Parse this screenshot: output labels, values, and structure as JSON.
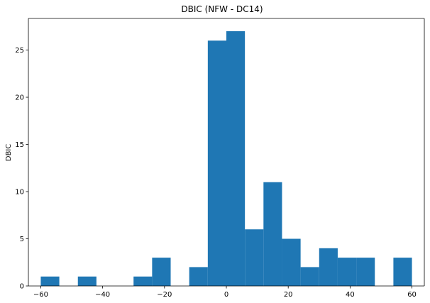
{
  "chart_data": {
    "type": "bar",
    "title": "DBIC (NFW - DC14)",
    "xlabel": "",
    "ylabel": "DBIC",
    "xlim": [
      -64,
      64
    ],
    "ylim": [
      0,
      28.35
    ],
    "x_ticks": [
      -60,
      -40,
      -20,
      0,
      20,
      40,
      60
    ],
    "y_ticks": [
      0,
      5,
      10,
      15,
      20,
      25
    ],
    "bins": [
      {
        "left": -60,
        "right": -54,
        "count": 1
      },
      {
        "left": -54,
        "right": -48,
        "count": 0
      },
      {
        "left": -48,
        "right": -42,
        "count": 1
      },
      {
        "left": -42,
        "right": -36,
        "count": 0
      },
      {
        "left": -36,
        "right": -30,
        "count": 0
      },
      {
        "left": -30,
        "right": -24,
        "count": 1
      },
      {
        "left": -24,
        "right": -18,
        "count": 3
      },
      {
        "left": -18,
        "right": -12,
        "count": 0
      },
      {
        "left": -12,
        "right": -6,
        "count": 2
      },
      {
        "left": -6,
        "right": 0,
        "count": 26
      },
      {
        "left": 0,
        "right": 6,
        "count": 27
      },
      {
        "left": 6,
        "right": 12,
        "count": 6
      },
      {
        "left": 12,
        "right": 18,
        "count": 11
      },
      {
        "left": 18,
        "right": 24,
        "count": 5
      },
      {
        "left": 24,
        "right": 30,
        "count": 2
      },
      {
        "left": 30,
        "right": 36,
        "count": 4
      },
      {
        "left": 36,
        "right": 42,
        "count": 3
      },
      {
        "left": 42,
        "right": 48,
        "count": 3
      },
      {
        "left": 48,
        "right": 54,
        "count": 0
      },
      {
        "left": 54,
        "right": 60,
        "count": 3
      }
    ],
    "bar_color": "#1f77b4",
    "grid": false
  }
}
